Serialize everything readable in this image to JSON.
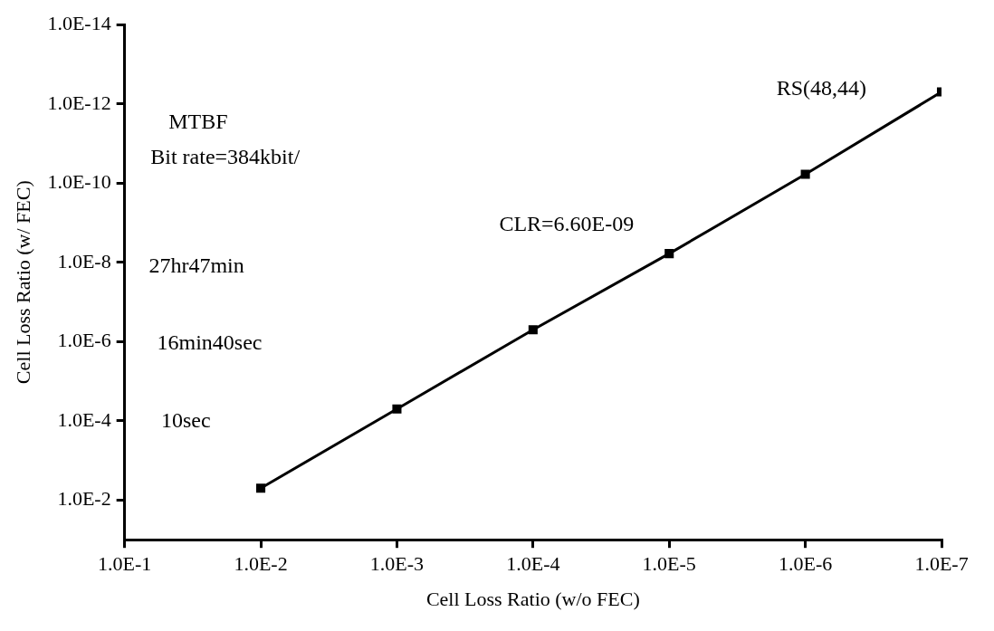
{
  "chart_data": {
    "type": "line",
    "xlabel": "Cell Loss Ratio (w/o FEC)",
    "ylabel": "Cell Loss Ratio (w/ FEC)",
    "log": "xy",
    "grid": false,
    "legend": false,
    "marker": "square",
    "line_style": "solid",
    "x": [
      0.01,
      0.001,
      0.0001,
      1e-05,
      1e-06,
      1e-07
    ],
    "series": [
      {
        "color": "#000000",
        "values": [
          0.005,
          5e-05,
          5e-07,
          6e-09,
          6e-11,
          5e-13
        ]
      }
    ],
    "xlim": [
      0.1,
      1e-07
    ],
    "xticks": [
      {
        "value": 0.1,
        "label": "1.0E-1"
      },
      {
        "value": 0.01,
        "label": "1.0E-2"
      },
      {
        "value": 0.001,
        "label": "1.0E-3"
      },
      {
        "value": 0.0001,
        "label": "1.0E-4"
      },
      {
        "value": 1e-05,
        "label": "1.0E-5"
      },
      {
        "value": 1e-06,
        "label": "1.0E-6"
      },
      {
        "value": 1e-07,
        "label": "1.0E-7"
      }
    ],
    "ylim": [
      0.1,
      1e-14
    ],
    "yticks": [
      {
        "value": 0.01,
        "label": "1.0E-2"
      },
      {
        "value": 0.0001,
        "label": "1.0E-4"
      },
      {
        "value": 1e-06,
        "label": "1.0E-6"
      },
      {
        "value": 1e-08,
        "label": "1.0E-8"
      },
      {
        "value": 1e-10,
        "label": "1.0E-10"
      },
      {
        "value": 1e-12,
        "label": "1.0E-12"
      },
      {
        "value": 1e-14,
        "label": "1.0E-14"
      }
    ],
    "annotations": [
      "MTBF",
      "Bit rate=384kbit/",
      "27hr47min",
      "16min40sec",
      "10sec",
      "CLR=6.60E-09",
      "RS(48,44)"
    ]
  }
}
